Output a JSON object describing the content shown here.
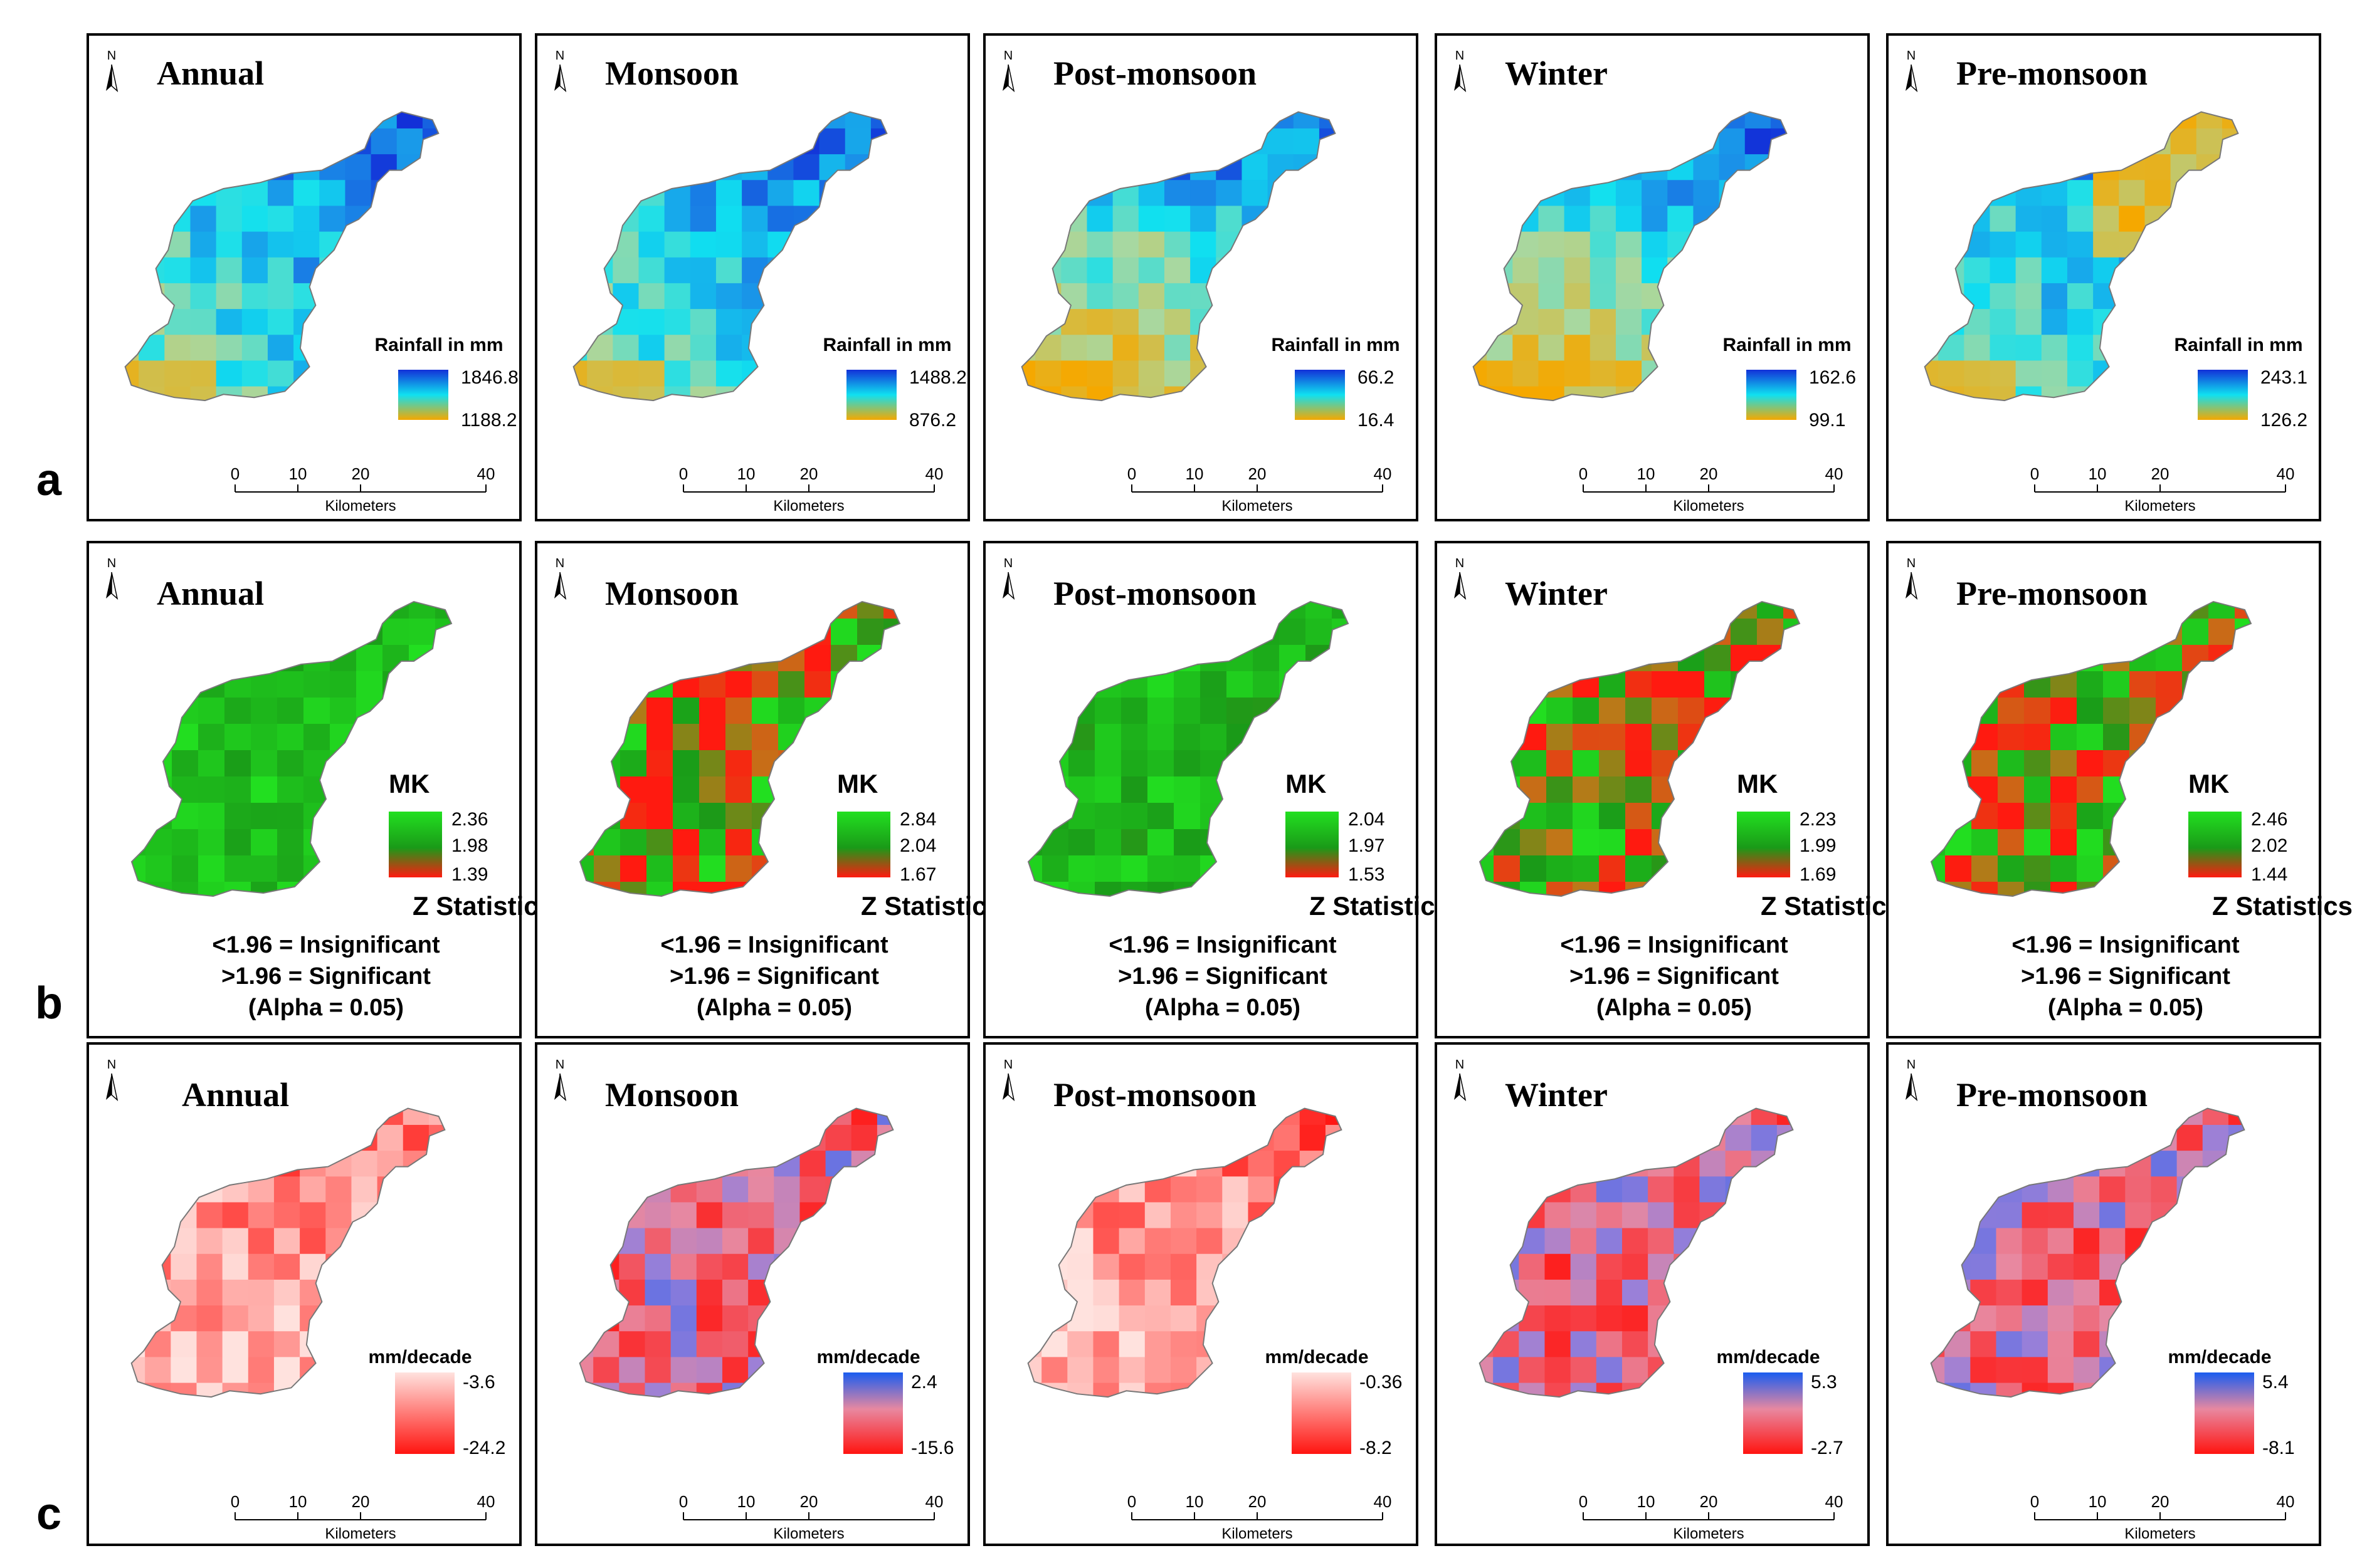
{
  "figure": {
    "row_labels": [
      "a",
      "b",
      "c"
    ],
    "north_label": "N",
    "scale_ticks": [
      "0",
      "10",
      "20",
      "40"
    ],
    "scale_unit": "Kilometers",
    "seasons": [
      "Annual",
      "Monsoon",
      "Post-monsoon",
      "Winter",
      "Pre-monsoon"
    ]
  },
  "rows": [
    {
      "id": "a",
      "legend_title": "Rainfall in mm",
      "panels": [
        {
          "season": "Annual",
          "max": "1846.8",
          "min": "1188.2",
          "data": [
            1846.8,
            1188.2
          ]
        },
        {
          "season": "Monsoon",
          "max": "1488.2",
          "min": "876.2",
          "data": [
            1488.2,
            876.2
          ]
        },
        {
          "season": "Post-monsoon",
          "max": "66.2",
          "min": "16.4",
          "data": [
            66.2,
            16.4
          ]
        },
        {
          "season": "Winter",
          "max": "162.6",
          "min": "99.1",
          "data": [
            162.6,
            99.1
          ]
        },
        {
          "season": "Pre-monsoon",
          "max": "243.1",
          "min": "126.2",
          "data": [
            243.1,
            126.2
          ]
        }
      ],
      "colors": {
        "high": "#1230d8",
        "mid": "#10e0f0",
        "low": "#f5a800"
      }
    },
    {
      "id": "b",
      "legend_title": "MK",
      "legend_subtitle": "Z Statistics",
      "notes": [
        "<1.96 = Insignificant",
        ">1.96 = Significant",
        "(Alpha = 0.05)"
      ],
      "panels": [
        {
          "season": "Annual",
          "max": "2.36",
          "mid": "1.98",
          "min": "1.39",
          "data": [
            2.36,
            1.98,
            1.39
          ]
        },
        {
          "season": "Monsoon",
          "max": "2.84",
          "mid": "2.04",
          "min": "1.67",
          "data": [
            2.84,
            2.04,
            1.67
          ]
        },
        {
          "season": "Post-monsoon",
          "max": "2.04",
          "mid": "1.97",
          "min": "1.53",
          "data": [
            2.04,
            1.97,
            1.53
          ]
        },
        {
          "season": "Winter",
          "max": "2.23",
          "mid": "1.99",
          "min": "1.69",
          "data": [
            2.23,
            1.99,
            1.69
          ]
        },
        {
          "season": "Pre-monsoon",
          "max": "2.46",
          "mid": "2.02",
          "min": "1.44",
          "data": [
            2.46,
            2.02,
            1.44
          ]
        }
      ],
      "colors": {
        "high": "#22e020",
        "mid": "#1a9a18",
        "low": "#ff1a10"
      }
    },
    {
      "id": "c",
      "legend_title": "mm/decade",
      "panels": [
        {
          "season": "Annual",
          "max": "-3.6",
          "min": "-24.2",
          "data": [
            -3.6,
            -24.2
          ]
        },
        {
          "season": "Monsoon",
          "max": "2.4",
          "min": "-15.6",
          "data": [
            2.4,
            -15.6
          ]
        },
        {
          "season": "Post-monsoon",
          "max": "-0.36",
          "min": "-8.2",
          "data": [
            -0.36,
            -8.2
          ]
        },
        {
          "season": "Winter",
          "max": "5.3",
          "min": "-2.7",
          "data": [
            5.3,
            -2.7
          ]
        },
        {
          "season": "Pre-monsoon",
          "max": "5.4",
          "min": "-8.1",
          "data": [
            5.4,
            -8.1
          ]
        }
      ],
      "colors": {
        "high": "#1a5cf0",
        "mid": "#e888a0",
        "low": "#ff1410",
        "pale": "#ffd8d4"
      }
    }
  ]
}
